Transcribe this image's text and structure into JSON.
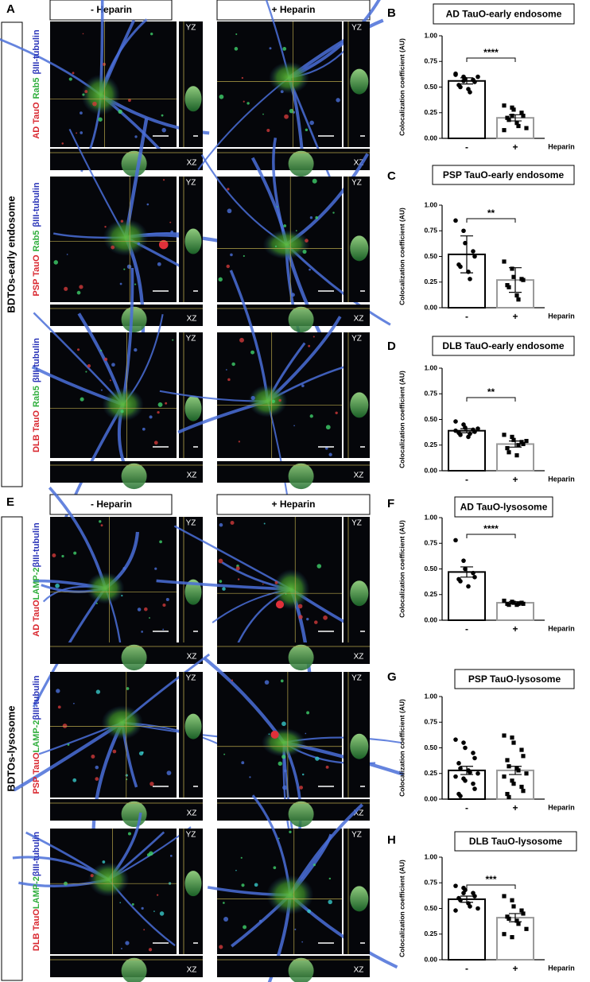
{
  "early_endosome": {
    "label": "A",
    "side_label": "BDTOs-early endosome",
    "columns": [
      "- Heparin",
      "+ Heparin"
    ],
    "rows": [
      [
        "AD TauO",
        "Rab5",
        "βIII-tubulin"
      ],
      [
        "PSP TauO",
        "Rab5",
        "βIII-tubulin"
      ],
      [
        "DLB TauO",
        "Rab5",
        "βIII-tubulin"
      ]
    ],
    "yz": "YZ",
    "xz": "XZ"
  },
  "lysosome": {
    "label": "E",
    "side_label": "BDTOs-lysosome",
    "columns": [
      "- Heparin",
      "+ Heparin"
    ],
    "rows": [
      [
        "AD TauO",
        "LAMP-2",
        "βIII-tubulin"
      ],
      [
        "PSP TauO",
        "LAMP-2",
        "βIII-tubulin"
      ],
      [
        "DLB TauO",
        "LAMP-2",
        "βIII-tubulin"
      ]
    ],
    "yz": "YZ",
    "xz": "XZ"
  },
  "chart_data": [
    {
      "type": "bar",
      "label": "B",
      "title": "AD TauO-early endosome",
      "y_label": "Colocalization coefficient (AU)",
      "x_label": "Heparin",
      "categories": [
        "-",
        "+"
      ],
      "values": [
        0.56,
        0.2
      ],
      "errors": [
        0.03,
        0.03
      ],
      "points": [
        [
          0.62,
          0.6,
          0.58,
          0.57,
          0.55,
          0.52,
          0.5,
          0.48,
          0.45,
          0.6,
          0.63,
          0.56
        ],
        [
          0.32,
          0.3,
          0.28,
          0.25,
          0.22,
          0.2,
          0.18,
          0.15,
          0.12,
          0.1,
          0.08,
          0.22
        ]
      ],
      "colors": [
        "#000000",
        "#9a9a9a"
      ],
      "markers": [
        "circle",
        "square"
      ],
      "significance": "****",
      "ylim": [
        0,
        1
      ],
      "yticks": [
        {
          "value": 0,
          "label": "0.00"
        },
        0.25,
        {
          "value": 0.5,
          "label": "0.50"
        },
        0.75,
        {
          "value": 1,
          "label": "1.00"
        }
      ]
    },
    {
      "type": "bar",
      "label": "C",
      "title": "PSP TauO-early endosome",
      "y_label": "Colocalization coefficient (AU)",
      "x_label": "Heparin",
      "categories": [
        "-",
        "+"
      ],
      "values": [
        0.52,
        0.27
      ],
      "errors": [
        0.18,
        0.12
      ],
      "points": [
        [
          0.85,
          0.75,
          0.63,
          0.55,
          0.5,
          0.42,
          0.4,
          0.35,
          0.28
        ],
        [
          0.45,
          0.38,
          0.3,
          0.28,
          0.27,
          0.22,
          0.2,
          0.12,
          0.08
        ]
      ],
      "colors": [
        "#000000",
        "#9a9a9a"
      ],
      "markers": [
        "circle",
        "square"
      ],
      "significance": "**",
      "ylim": [
        0,
        1
      ],
      "yticks": [
        {
          "value": 0,
          "label": "0.00"
        },
        0.25,
        {
          "value": 0.5,
          "label": "0.50"
        },
        0.75,
        {
          "value": 1,
          "label": "1.00"
        }
      ]
    },
    {
      "type": "bar",
      "label": "D",
      "title": "DLB TauO-early endosome",
      "y_label": "Colocalization coefficient (AU)",
      "x_label": "Heparin",
      "categories": [
        "-",
        "+"
      ],
      "values": [
        0.39,
        0.26
      ],
      "errors": [
        0.02,
        0.03
      ],
      "points": [
        [
          0.48,
          0.45,
          0.42,
          0.4,
          0.38,
          0.37,
          0.35,
          0.33,
          0.36,
          0.41,
          0.39
        ],
        [
          0.35,
          0.33,
          0.3,
          0.28,
          0.26,
          0.22,
          0.18,
          0.15,
          0.25,
          0.29
        ]
      ],
      "colors": [
        "#000000",
        "#9a9a9a"
      ],
      "markers": [
        "circle",
        "square"
      ],
      "significance": "**",
      "ylim": [
        0,
        1
      ],
      "yticks": [
        {
          "value": 0,
          "label": "0.00"
        },
        0.25,
        {
          "value": 0.5,
          "label": "0.50"
        },
        0.75,
        {
          "value": 1,
          "label": "1.00"
        }
      ]
    },
    {
      "type": "bar",
      "label": "F",
      "title": "AD TauO-lysosome",
      "y_label": "Colocalization coefficient (AU)",
      "x_label": "Heparin",
      "categories": [
        "-",
        "+"
      ],
      "values": [
        0.47,
        0.17
      ],
      "errors": [
        0.05,
        0.01
      ],
      "points": [
        [
          0.78,
          0.58,
          0.5,
          0.46,
          0.42,
          0.4,
          0.38,
          0.33
        ],
        [
          0.19,
          0.18,
          0.17,
          0.17,
          0.16,
          0.16,
          0.15,
          0.15,
          0.16
        ]
      ],
      "colors": [
        "#000000",
        "#9a9a9a"
      ],
      "markers": [
        "circle",
        "square"
      ],
      "significance": "****",
      "ylim": [
        0,
        1
      ],
      "yticks": [
        {
          "value": 0,
          "label": "0.00"
        },
        0.25,
        {
          "value": 0.5,
          "label": "0.50"
        },
        0.75,
        {
          "value": 1,
          "label": "1.00"
        }
      ]
    },
    {
      "type": "bar",
      "label": "G",
      "title": "PSP TauO-lysosome",
      "y_label": "Colocalization coefficient (AU)",
      "x_label": "Heparin",
      "categories": [
        "-",
        "+"
      ],
      "values": [
        0.28,
        0.28
      ],
      "errors": [
        0.04,
        0.04
      ],
      "points": [
        [
          0.58,
          0.55,
          0.5,
          0.45,
          0.4,
          0.35,
          0.3,
          0.28,
          0.26,
          0.25,
          0.22,
          0.2,
          0.18,
          0.15,
          0.1,
          0.05,
          0.03
        ],
        [
          0.62,
          0.6,
          0.55,
          0.48,
          0.42,
          0.38,
          0.32,
          0.3,
          0.28,
          0.25,
          0.22,
          0.18,
          0.15,
          0.12,
          0.08,
          0.05,
          0.02
        ]
      ],
      "colors": [
        "#000000",
        "#9a9a9a"
      ],
      "markers": [
        "circle",
        "square"
      ],
      "ylim": [
        0,
        1
      ],
      "yticks": [
        {
          "value": 0,
          "label": "0.00"
        },
        0.25,
        {
          "value": 0.5,
          "label": "0.50"
        },
        0.75,
        {
          "value": 1,
          "label": "1.00"
        }
      ]
    },
    {
      "type": "bar",
      "label": "H",
      "title": "DLB TauO-lysosome",
      "y_label": "Colocalization coefficient (AU)",
      "x_label": "Heparin",
      "categories": [
        "-",
        "+"
      ],
      "values": [
        0.59,
        0.41
      ],
      "errors": [
        0.03,
        0.04
      ],
      "points": [
        [
          0.72,
          0.7,
          0.68,
          0.65,
          0.62,
          0.6,
          0.58,
          0.55,
          0.52,
          0.5,
          0.48,
          0.65
        ],
        [
          0.62,
          0.58,
          0.52,
          0.48,
          0.45,
          0.42,
          0.4,
          0.38,
          0.35,
          0.3,
          0.25,
          0.22
        ]
      ],
      "colors": [
        "#000000",
        "#9a9a9a"
      ],
      "markers": [
        "circle",
        "square"
      ],
      "significance": "***",
      "ylim": [
        0,
        1
      ],
      "yticks": [
        {
          "value": 0,
          "label": "0.00"
        },
        0.25,
        {
          "value": 0.5,
          "label": "0.50"
        },
        0.75,
        {
          "value": 1,
          "label": "1.00"
        }
      ]
    }
  ]
}
